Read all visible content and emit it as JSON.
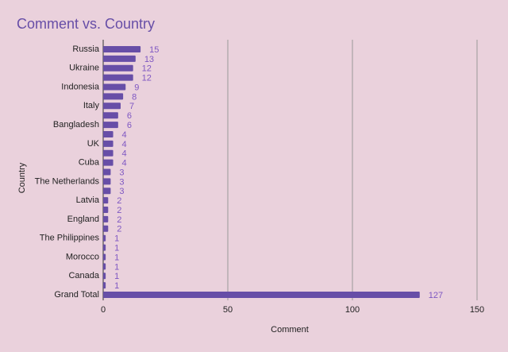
{
  "chart_data": {
    "type": "bar",
    "orientation": "horizontal",
    "title": "Comment vs. Country",
    "x_label": "Comment",
    "y_label": "Country",
    "categories": [
      "Russia",
      null,
      "Ukraine",
      null,
      "Indonesia",
      null,
      "Italy",
      null,
      "Bangladesh",
      null,
      "UK",
      null,
      "Cuba",
      null,
      "The Netherlands",
      null,
      "Latvia",
      null,
      "England",
      null,
      "The Philippines",
      null,
      "Morocco",
      null,
      "Canada",
      null,
      "Grand Total"
    ],
    "values": [
      15,
      13,
      12,
      12,
      9,
      8,
      7,
      6,
      6,
      4,
      4,
      4,
      4,
      3,
      3,
      3,
      2,
      2,
      2,
      2,
      1,
      1,
      1,
      1,
      1,
      1,
      127
    ],
    "color": "#674ea7",
    "xlim": [
      0,
      150
    ],
    "xticks": [
      0,
      50,
      100,
      150
    ],
    "grid": true
  }
}
